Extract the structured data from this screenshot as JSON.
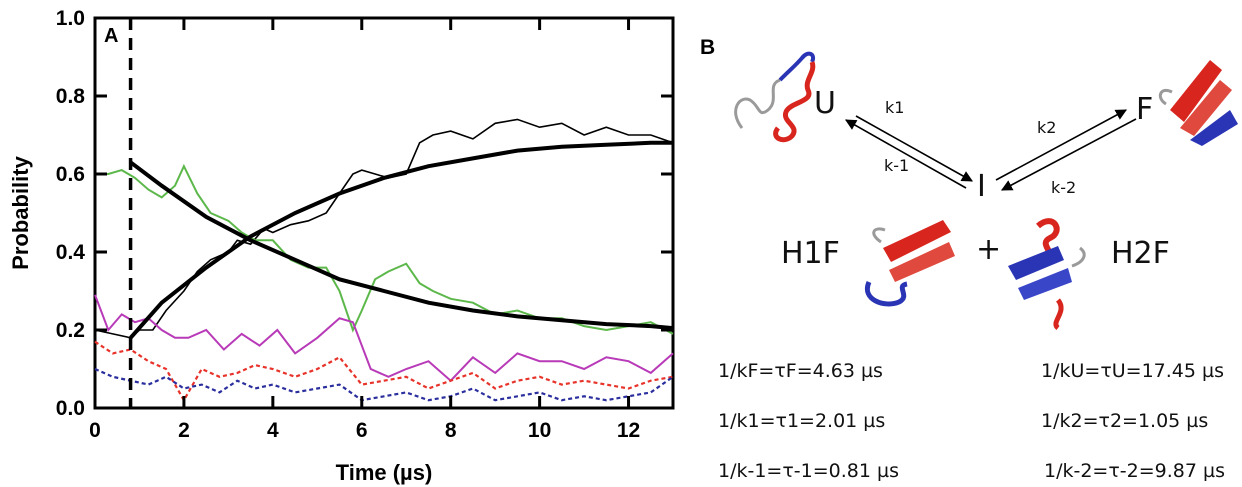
{
  "chart_data": {
    "type": "line",
    "panel_label": "A",
    "xlabel": "Time (µs)",
    "ylabel": "Probability",
    "xlim": [
      0,
      13
    ],
    "ylim": [
      0.0,
      1.0
    ],
    "x_ticks": [
      "0",
      "2",
      "4",
      "6",
      "8",
      "10",
      "12"
    ],
    "y_ticks": [
      "0.0",
      "0.2",
      "0.4",
      "0.6",
      "0.8",
      "1.0"
    ],
    "vertical_line_x": 0.8,
    "series": [
      {
        "color": "#000000",
        "style": "solid-thin",
        "x": [
          0,
          0.4,
          0.8,
          1.0,
          1.3,
          1.6,
          2.0,
          2.3,
          2.6,
          3.0,
          3.2,
          3.5,
          3.8,
          4.0,
          4.4,
          4.8,
          5.2,
          5.5,
          5.8,
          6.0,
          6.3,
          6.6,
          7.0,
          7.3,
          7.6,
          8.0,
          8.5,
          9.0,
          9.5,
          10.0,
          10.5,
          11.0,
          11.5,
          12.0,
          12.5,
          13.0
        ],
        "y": [
          0.2,
          0.19,
          0.18,
          0.2,
          0.2,
          0.25,
          0.3,
          0.35,
          0.38,
          0.4,
          0.43,
          0.42,
          0.46,
          0.45,
          0.47,
          0.48,
          0.5,
          0.55,
          0.6,
          0.61,
          0.6,
          0.59,
          0.6,
          0.68,
          0.7,
          0.71,
          0.69,
          0.73,
          0.74,
          0.72,
          0.73,
          0.7,
          0.72,
          0.7,
          0.7,
          0.68
        ]
      },
      {
        "color": "#5cb84a",
        "style": "solid",
        "x": [
          0,
          0.3,
          0.6,
          0.9,
          1.2,
          1.5,
          1.8,
          2.0,
          2.3,
          2.6,
          3.0,
          3.3,
          3.6,
          4.0,
          4.4,
          4.8,
          5.2,
          5.5,
          5.8,
          6.0,
          6.3,
          6.6,
          7.0,
          7.3,
          7.6,
          8.0,
          8.5,
          9.0,
          9.5,
          10.0,
          10.5,
          11.0,
          11.5,
          12.0,
          12.5,
          13.0
        ],
        "y": [
          0.6,
          0.6,
          0.61,
          0.59,
          0.56,
          0.54,
          0.57,
          0.62,
          0.55,
          0.5,
          0.48,
          0.45,
          0.43,
          0.43,
          0.38,
          0.36,
          0.36,
          0.3,
          0.2,
          0.25,
          0.33,
          0.35,
          0.37,
          0.32,
          0.3,
          0.28,
          0.27,
          0.24,
          0.25,
          0.23,
          0.23,
          0.21,
          0.2,
          0.21,
          0.22,
          0.19
        ]
      },
      {
        "color": "#b83ab8",
        "style": "solid",
        "x": [
          0,
          0.3,
          0.6,
          0.9,
          1.2,
          1.5,
          1.8,
          2.1,
          2.5,
          2.9,
          3.3,
          3.7,
          4.1,
          4.5,
          5.0,
          5.5,
          5.8,
          6.2,
          6.6,
          7.0,
          7.5,
          8.0,
          8.5,
          9.0,
          9.5,
          10.0,
          10.5,
          11.0,
          11.5,
          12.0,
          12.5,
          13.0
        ],
        "y": [
          0.29,
          0.2,
          0.24,
          0.22,
          0.23,
          0.2,
          0.18,
          0.18,
          0.2,
          0.15,
          0.19,
          0.16,
          0.2,
          0.14,
          0.18,
          0.23,
          0.22,
          0.1,
          0.08,
          0.1,
          0.12,
          0.07,
          0.13,
          0.09,
          0.14,
          0.12,
          0.12,
          0.1,
          0.13,
          0.12,
          0.09,
          0.14
        ]
      },
      {
        "color": "#e8332b",
        "style": "dotted",
        "x": [
          0,
          0.4,
          0.8,
          1.2,
          1.6,
          2.0,
          2.4,
          2.8,
          3.2,
          3.6,
          4.0,
          4.5,
          5.0,
          5.5,
          6.0,
          6.5,
          7.0,
          7.5,
          8.0,
          8.5,
          9.0,
          9.5,
          10.0,
          10.5,
          11.0,
          11.5,
          12.0,
          12.5,
          13.0
        ],
        "y": [
          0.17,
          0.14,
          0.15,
          0.12,
          0.1,
          0.02,
          0.1,
          0.08,
          0.09,
          0.11,
          0.1,
          0.08,
          0.1,
          0.13,
          0.06,
          0.07,
          0.08,
          0.05,
          0.07,
          0.09,
          0.05,
          0.07,
          0.08,
          0.06,
          0.07,
          0.06,
          0.05,
          0.07,
          0.08
        ]
      },
      {
        "color": "#2b2f9e",
        "style": "dotted",
        "x": [
          0,
          0.4,
          0.8,
          1.2,
          1.6,
          2.0,
          2.4,
          2.8,
          3.2,
          3.6,
          4.0,
          4.5,
          5.0,
          5.5,
          6.0,
          6.5,
          7.0,
          7.5,
          8.0,
          8.5,
          9.0,
          9.5,
          10.0,
          10.5,
          11.0,
          11.5,
          12.0,
          12.5,
          13.0
        ],
        "y": [
          0.1,
          0.08,
          0.07,
          0.06,
          0.08,
          0.05,
          0.06,
          0.04,
          0.07,
          0.05,
          0.06,
          0.04,
          0.05,
          0.06,
          0.02,
          0.03,
          0.04,
          0.02,
          0.03,
          0.05,
          0.02,
          0.03,
          0.04,
          0.02,
          0.03,
          0.02,
          0.03,
          0.04,
          0.08
        ]
      },
      {
        "color": "#000000",
        "style": "fit",
        "x": [
          0.8,
          1.5,
          2.5,
          3.5,
          4.5,
          5.5,
          6.5,
          7.5,
          8.5,
          9.5,
          10.5,
          11.5,
          12.5,
          13.0
        ],
        "y": [
          0.18,
          0.27,
          0.36,
          0.44,
          0.5,
          0.55,
          0.59,
          0.62,
          0.64,
          0.66,
          0.67,
          0.675,
          0.68,
          0.68
        ]
      },
      {
        "color": "#000000",
        "style": "fit",
        "x": [
          0.8,
          1.5,
          2.5,
          3.5,
          4.5,
          5.5,
          6.5,
          7.5,
          8.5,
          9.5,
          10.5,
          11.5,
          12.5,
          13.0
        ],
        "y": [
          0.63,
          0.57,
          0.49,
          0.43,
          0.38,
          0.33,
          0.3,
          0.27,
          0.25,
          0.235,
          0.225,
          0.215,
          0.21,
          0.205
        ]
      }
    ]
  },
  "panel_b": {
    "label": "B",
    "states": {
      "U": "U",
      "F": "F",
      "I": "I",
      "H1F": "H1F",
      "H2F": "H2F",
      "plus": "+"
    },
    "rates": {
      "k1": "k1",
      "km1": "k-1",
      "k2": "k2",
      "km2": "k-2"
    },
    "equations": {
      "kF": "1/kF=τF=4.63 µs",
      "kU": "1/kU=τU=17.45 µs",
      "k1": "1/k1=τ1=2.01 µs",
      "k2": "1/k2=τ2=1.05 µs",
      "km1": "1/k-1=τ-1=0.81 µs",
      "km2": "1/k-2=τ-2=9.87 µs"
    },
    "protein_colors": {
      "helix": "#d8261e",
      "strand": "#2a35b5",
      "coil": "#9a9a9a"
    }
  }
}
